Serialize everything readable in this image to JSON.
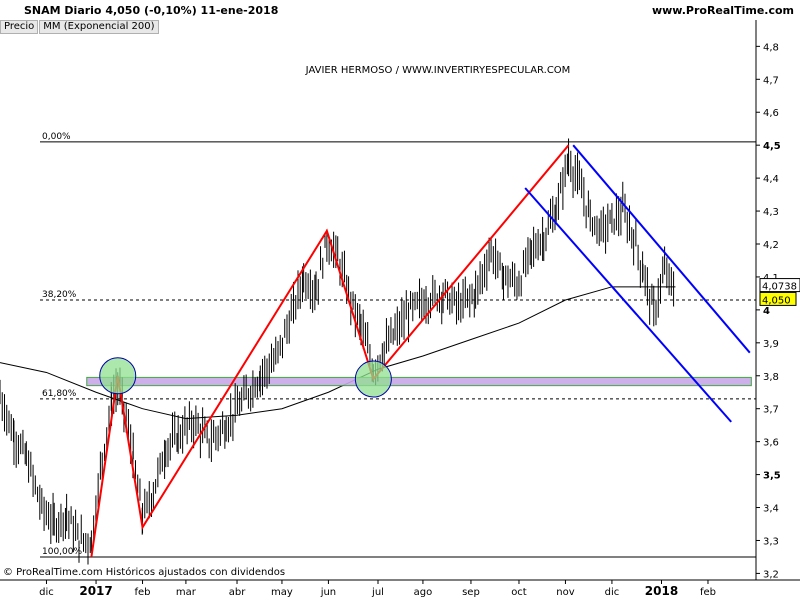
{
  "header": {
    "symbol_line": "SNAM   Diario   4,050 (-0,10%)   11-ene-2018",
    "site": "www.ProRealTime.com"
  },
  "legend": {
    "price_label": "Precio",
    "ma_label": "MM (Exponencial 200)"
  },
  "watermark": "JAVIER HERMOSO / WWW.INVERTIRYESPECULAR.COM",
  "footer": "© ProRealTime.com  Históricos ajustados con dividendos",
  "colors": {
    "candles": "#000000",
    "zigzag": "#ff0000",
    "channel": "#0000ff",
    "ma": "#000000",
    "band_fill": "#c8a8e8",
    "band_edge": "#30a030",
    "circle": "#90e090",
    "price_box": "#ffff00"
  },
  "chart_data": {
    "type": "line",
    "ylim": [
      3.18,
      4.88
    ],
    "y_ticks": [
      "4,8",
      "4,7",
      "4,6",
      "4,5",
      "4,4",
      "4,3",
      "4,2",
      "4,1",
      "4",
      "3,9",
      "3,8",
      "3,7",
      "3,6",
      "3,5",
      "3,4",
      "3,3",
      "3,2"
    ],
    "y_tick_values": [
      4.8,
      4.7,
      4.6,
      4.5,
      4.4,
      4.3,
      4.2,
      4.1,
      4.0,
      3.9,
      3.8,
      3.7,
      3.6,
      3.5,
      3.4,
      3.3,
      3.2
    ],
    "y_tick_bold": [
      false,
      false,
      false,
      true,
      false,
      false,
      false,
      false,
      true,
      false,
      false,
      false,
      false,
      true,
      false,
      false,
      false
    ],
    "x_labels": [
      {
        "label": "dic",
        "date": "2016-12-01",
        "bold": false
      },
      {
        "label": "2017",
        "date": "2017-01-02",
        "bold": true
      },
      {
        "label": "feb",
        "date": "2017-02-01",
        "bold": false
      },
      {
        "label": "mar",
        "date": "2017-03-01",
        "bold": false
      },
      {
        "label": "abr",
        "date": "2017-04-03",
        "bold": false
      },
      {
        "label": "may",
        "date": "2017-05-02",
        "bold": false
      },
      {
        "label": "jun",
        "date": "2017-06-01",
        "bold": false
      },
      {
        "label": "jul",
        "date": "2017-07-03",
        "bold": false
      },
      {
        "label": "ago",
        "date": "2017-08-01",
        "bold": false
      },
      {
        "label": "sep",
        "date": "2017-09-01",
        "bold": false
      },
      {
        "label": "oct",
        "date": "2017-10-02",
        "bold": false
      },
      {
        "label": "nov",
        "date": "2017-11-01",
        "bold": false
      },
      {
        "label": "dic",
        "date": "2017-12-01",
        "bold": false
      },
      {
        "label": "2018",
        "date": "2018-01-02",
        "bold": true
      },
      {
        "label": "feb",
        "date": "2018-02-01",
        "bold": false
      }
    ],
    "last_price": 4.05,
    "last_price_label": "4,050",
    "ma_last_label": "4,0738",
    "ma_last": 4.0738,
    "fibo_levels": [
      {
        "label": "0,00%",
        "value": 4.51
      },
      {
        "label": "38,20%",
        "value": 4.03
      },
      {
        "label": "61,80%",
        "value": 3.73
      },
      {
        "label": "100,00%",
        "value": 3.25
      }
    ],
    "zigzag": [
      {
        "date": "2016-12-30",
        "value": 3.25
      },
      {
        "date": "2017-01-16",
        "value": 3.8
      },
      {
        "date": "2017-02-01",
        "value": 3.34
      },
      {
        "date": "2017-05-31",
        "value": 4.24
      },
      {
        "date": "2017-06-30",
        "value": 3.79
      },
      {
        "date": "2017-11-03",
        "value": 4.5
      }
    ],
    "channel_upper": [
      {
        "date": "2017-11-06",
        "value": 4.5
      },
      {
        "date": "2018-02-28",
        "value": 3.87
      }
    ],
    "channel_lower": [
      {
        "date": "2017-10-06",
        "value": 4.37
      },
      {
        "date": "2018-02-16",
        "value": 3.66
      }
    ],
    "support_band": {
      "low": 3.77,
      "high": 3.795,
      "from": "2016-12-27",
      "to": "2018-03-01"
    },
    "circles": [
      {
        "date": "2017-01-16",
        "value": 3.8
      },
      {
        "date": "2017-06-30",
        "value": 3.79
      }
    ],
    "ma_series": [
      {
        "date": "2016-11-01",
        "value": 3.84
      },
      {
        "date": "2016-12-01",
        "value": 3.81
      },
      {
        "date": "2017-01-02",
        "value": 3.75
      },
      {
        "date": "2017-02-01",
        "value": 3.7
      },
      {
        "date": "2017-03-01",
        "value": 3.67
      },
      {
        "date": "2017-04-03",
        "value": 3.68
      },
      {
        "date": "2017-05-02",
        "value": 3.7
      },
      {
        "date": "2017-06-01",
        "value": 3.75
      },
      {
        "date": "2017-07-03",
        "value": 3.82
      },
      {
        "date": "2017-08-01",
        "value": 3.86
      },
      {
        "date": "2017-09-01",
        "value": 3.91
      },
      {
        "date": "2017-10-02",
        "value": 3.96
      },
      {
        "date": "2017-11-01",
        "value": 4.03
      },
      {
        "date": "2017-12-01",
        "value": 4.07
      },
      {
        "date": "2018-01-11",
        "value": 4.07
      }
    ],
    "price_path": [
      {
        "date": "2016-11-01",
        "value": 3.74
      },
      {
        "date": "2016-11-10",
        "value": 3.62
      },
      {
        "date": "2016-11-18",
        "value": 3.55
      },
      {
        "date": "2016-11-28",
        "value": 3.4
      },
      {
        "date": "2016-12-06",
        "value": 3.35
      },
      {
        "date": "2016-12-14",
        "value": 3.38
      },
      {
        "date": "2016-12-22",
        "value": 3.3
      },
      {
        "date": "2016-12-30",
        "value": 3.3
      },
      {
        "date": "2017-01-06",
        "value": 3.55
      },
      {
        "date": "2017-01-12",
        "value": 3.72
      },
      {
        "date": "2017-01-16",
        "value": 3.77
      },
      {
        "date": "2017-01-20",
        "value": 3.7
      },
      {
        "date": "2017-01-26",
        "value": 3.55
      },
      {
        "date": "2017-02-01",
        "value": 3.37
      },
      {
        "date": "2017-02-08",
        "value": 3.45
      },
      {
        "date": "2017-02-16",
        "value": 3.58
      },
      {
        "date": "2017-02-24",
        "value": 3.62
      },
      {
        "date": "2017-03-06",
        "value": 3.66
      },
      {
        "date": "2017-03-16",
        "value": 3.6
      },
      {
        "date": "2017-03-27",
        "value": 3.65
      },
      {
        "date": "2017-04-06",
        "value": 3.72
      },
      {
        "date": "2017-04-18",
        "value": 3.8
      },
      {
        "date": "2017-04-28",
        "value": 3.85
      },
      {
        "date": "2017-05-08",
        "value": 3.98
      },
      {
        "date": "2017-05-16",
        "value": 4.1
      },
      {
        "date": "2017-05-24",
        "value": 4.06
      },
      {
        "date": "2017-05-31",
        "value": 4.21
      },
      {
        "date": "2017-06-07",
        "value": 4.16
      },
      {
        "date": "2017-06-14",
        "value": 4.05
      },
      {
        "date": "2017-06-22",
        "value": 3.95
      },
      {
        "date": "2017-06-30",
        "value": 3.82
      },
      {
        "date": "2017-07-07",
        "value": 3.88
      },
      {
        "date": "2017-07-14",
        "value": 3.93
      },
      {
        "date": "2017-07-24",
        "value": 4.0
      },
      {
        "date": "2017-08-03",
        "value": 4.03
      },
      {
        "date": "2017-08-14",
        "value": 4.05
      },
      {
        "date": "2017-08-24",
        "value": 4.01
      },
      {
        "date": "2017-09-04",
        "value": 4.05
      },
      {
        "date": "2017-09-14",
        "value": 4.18
      },
      {
        "date": "2017-09-22",
        "value": 4.1
      },
      {
        "date": "2017-10-02",
        "value": 4.08
      },
      {
        "date": "2017-10-10",
        "value": 4.18
      },
      {
        "date": "2017-10-18",
        "value": 4.22
      },
      {
        "date": "2017-10-26",
        "value": 4.3
      },
      {
        "date": "2017-11-03",
        "value": 4.46
      },
      {
        "date": "2017-11-10",
        "value": 4.38
      },
      {
        "date": "2017-11-17",
        "value": 4.28
      },
      {
        "date": "2017-11-24",
        "value": 4.24
      },
      {
        "date": "2017-12-01",
        "value": 4.27
      },
      {
        "date": "2017-12-08",
        "value": 4.3
      },
      {
        "date": "2017-12-15",
        "value": 4.22
      },
      {
        "date": "2017-12-21",
        "value": 4.12
      },
      {
        "date": "2017-12-28",
        "value": 3.99
      },
      {
        "date": "2018-01-04",
        "value": 4.12
      },
      {
        "date": "2018-01-11",
        "value": 4.05
      }
    ]
  }
}
